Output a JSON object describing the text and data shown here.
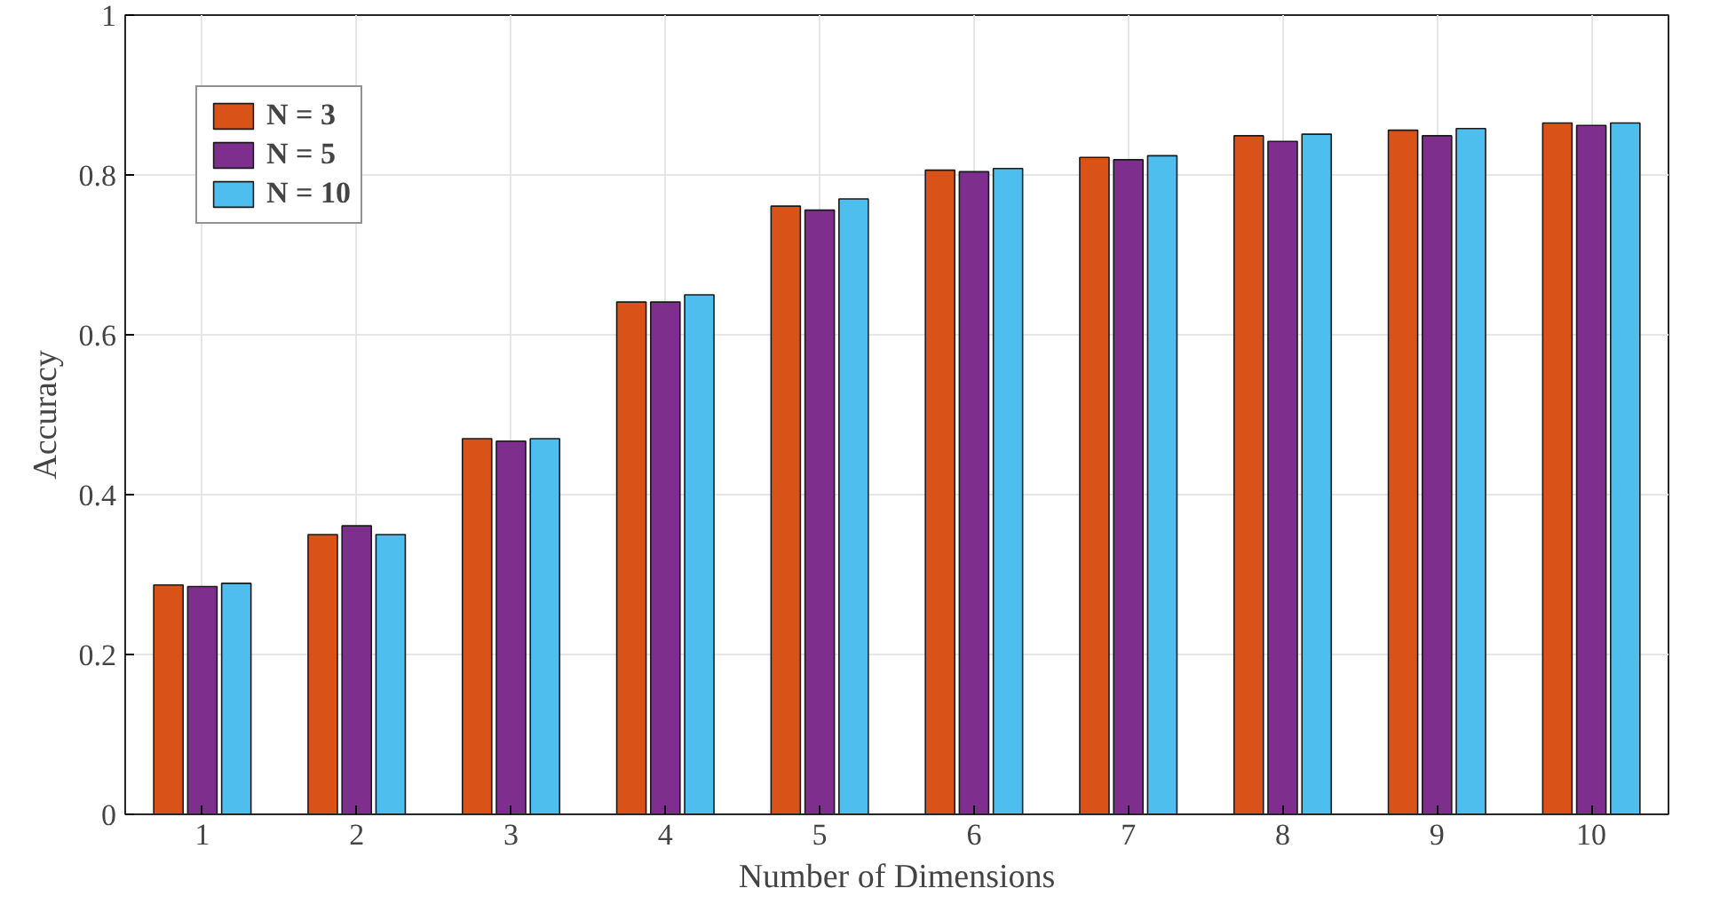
{
  "chart_data": {
    "type": "bar",
    "xlabel": "Number of Dimensions",
    "ylabel": "Accuracy",
    "categories": [
      "1",
      "2",
      "3",
      "4",
      "5",
      "6",
      "7",
      "8",
      "9",
      "10"
    ],
    "series": [
      {
        "name": "N = 3",
        "color": "#d95319",
        "values": [
          0.287,
          0.35,
          0.47,
          0.641,
          0.761,
          0.806,
          0.822,
          0.849,
          0.856,
          0.865
        ]
      },
      {
        "name": "N = 5",
        "color": "#7e2f8e",
        "values": [
          0.285,
          0.361,
          0.467,
          0.641,
          0.756,
          0.804,
          0.819,
          0.842,
          0.849,
          0.862
        ]
      },
      {
        "name": "N = 10",
        "color": "#4dbeee",
        "values": [
          0.289,
          0.35,
          0.47,
          0.65,
          0.77,
          0.808,
          0.824,
          0.851,
          0.858,
          0.865
        ]
      }
    ],
    "ylim": [
      0,
      1
    ],
    "yticks": [
      0,
      0.2,
      0.4,
      0.6,
      0.8,
      1
    ],
    "grid": true,
    "legend": "top left"
  }
}
